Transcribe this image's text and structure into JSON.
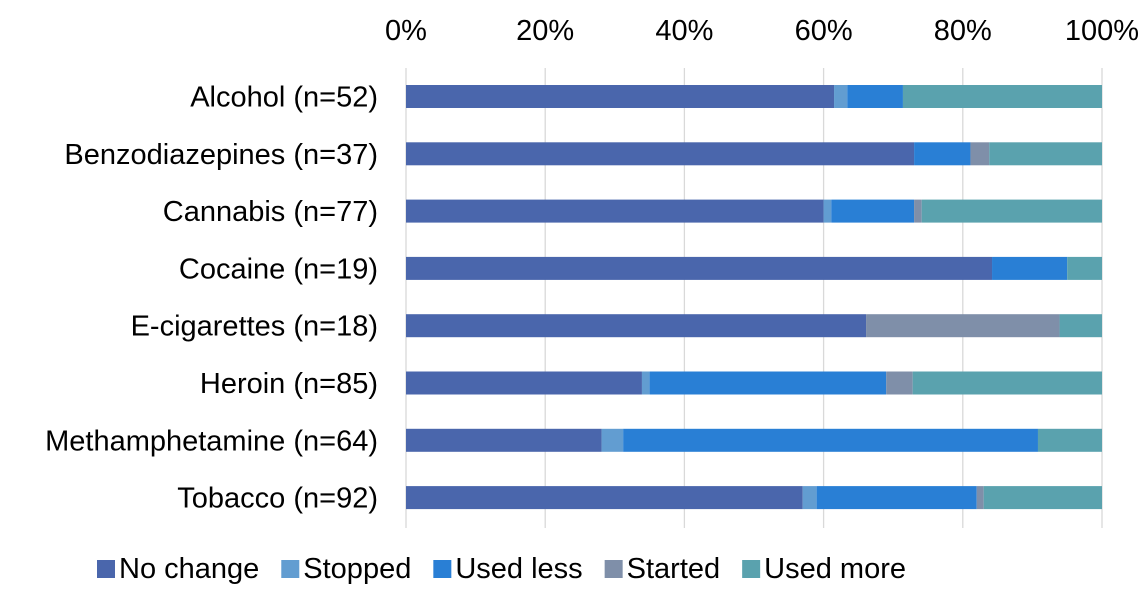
{
  "chart_data": {
    "type": "bar",
    "orientation": "horizontal",
    "stacked": "percent",
    "categories": [
      "Alcohol (n=52)",
      "Benzodiazepines (n=37)",
      "Cannabis (n=77)",
      "Cocaine (n=19)",
      "E-cigarettes (n=18)",
      "Heroin (n=85)",
      "Methamphetamine (n=64)",
      "Tobacco (n=92)"
    ],
    "series": [
      {
        "name": "No change",
        "color": "#4A66AC",
        "values": [
          61.5,
          73.0,
          60.0,
          84.2,
          66.1,
          33.9,
          28.1,
          57.0
        ]
      },
      {
        "name": "Stopped",
        "color": "#629DD1",
        "values": [
          1.9,
          0.0,
          1.1,
          0.0,
          0.0,
          1.1,
          3.1,
          2.0
        ]
      },
      {
        "name": "Used less",
        "color": "#297FD5",
        "values": [
          8.0,
          8.1,
          11.9,
          10.8,
          0.0,
          34.0,
          59.6,
          23.0
        ]
      },
      {
        "name": "Started",
        "color": "#7F8FA9",
        "values": [
          0.0,
          2.7,
          1.1,
          0.0,
          27.8,
          3.8,
          0.0,
          1.0
        ]
      },
      {
        "name": "Used more",
        "color": "#5AA2AE",
        "values": [
          28.6,
          16.2,
          25.9,
          5.0,
          6.1,
          27.2,
          9.2,
          17.0
        ]
      }
    ],
    "xaxis": {
      "ticks": [
        "0%",
        "20%",
        "40%",
        "60%",
        "80%",
        "100%"
      ],
      "range": [
        0,
        100
      ],
      "position": "top"
    },
    "grid": true,
    "legend_position": "bottom"
  }
}
